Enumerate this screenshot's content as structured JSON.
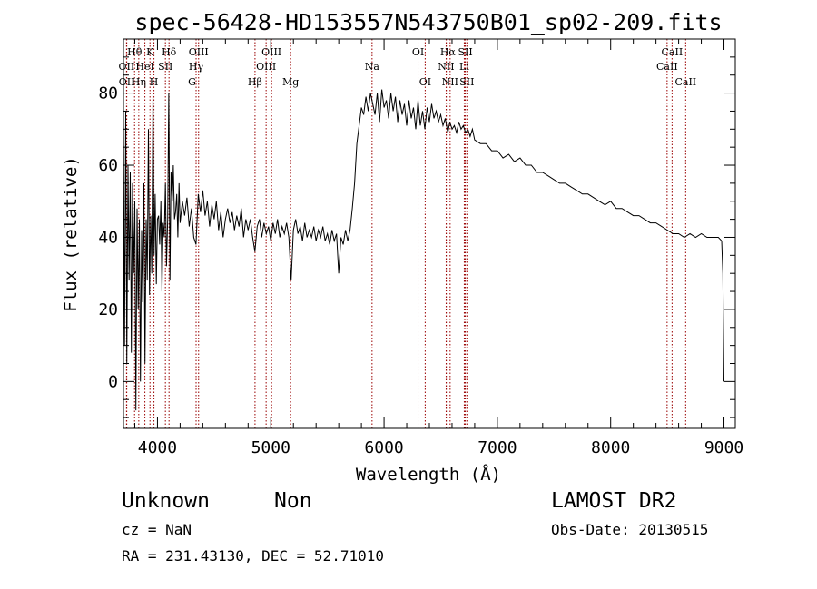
{
  "header": {
    "title": "spec-56428-HD153557N543750B01_sp02-209.fits"
  },
  "footer": {
    "class_label": "Unknown",
    "subclass_label": "Non",
    "survey_label": "LAMOST DR2",
    "cz_text": "cz = NaN",
    "obs_date_text": "Obs-Date: 20130515",
    "coords_text": "RA = 231.43130, DEC =  52.71010"
  },
  "chart_data": {
    "type": "line",
    "title": "spec-56428-HD153557N543750B01_sp02-209.fits",
    "xlabel": "Wavelength (Å)",
    "ylabel": "Flux (relative)",
    "xlim": [
      3700,
      9100
    ],
    "ylim": [
      -13,
      95
    ],
    "xticks": [
      4000,
      5000,
      6000,
      7000,
      8000,
      9000
    ],
    "yticks": [
      0,
      20,
      40,
      60,
      80
    ],
    "grid": false,
    "series": [
      {
        "points": [
          [
            3700,
            72
          ],
          [
            3710,
            10
          ],
          [
            3720,
            75
          ],
          [
            3730,
            5
          ],
          [
            3740,
            60
          ],
          [
            3750,
            28
          ],
          [
            3760,
            58
          ],
          [
            3770,
            8
          ],
          [
            3780,
            55
          ],
          [
            3790,
            30
          ],
          [
            3800,
            50
          ],
          [
            3810,
            -8
          ],
          [
            3820,
            48
          ],
          [
            3830,
            20
          ],
          [
            3840,
            45
          ],
          [
            3850,
            0
          ],
          [
            3860,
            42
          ],
          [
            3870,
            22
          ],
          [
            3880,
            55
          ],
          [
            3890,
            5
          ],
          [
            3900,
            45
          ],
          [
            3910,
            28
          ],
          [
            3920,
            70
          ],
          [
            3930,
            24
          ],
          [
            3940,
            46
          ],
          [
            3950,
            30
          ],
          [
            3960,
            80
          ],
          [
            3970,
            35
          ],
          [
            3980,
            52
          ],
          [
            3990,
            27
          ],
          [
            4000,
            45
          ],
          [
            4010,
            46
          ],
          [
            4020,
            38
          ],
          [
            4030,
            50
          ],
          [
            4040,
            25
          ],
          [
            4050,
            44
          ],
          [
            4060,
            40
          ],
          [
            4070,
            55
          ],
          [
            4080,
            32
          ],
          [
            4090,
            45
          ],
          [
            4100,
            80
          ],
          [
            4110,
            28
          ],
          [
            4120,
            58
          ],
          [
            4130,
            50
          ],
          [
            4140,
            60
          ],
          [
            4150,
            45
          ],
          [
            4160,
            47
          ],
          [
            4170,
            52
          ],
          [
            4180,
            40
          ],
          [
            4190,
            55
          ],
          [
            4200,
            44
          ],
          [
            4220,
            50
          ],
          [
            4240,
            46
          ],
          [
            4260,
            51
          ],
          [
            4280,
            43
          ],
          [
            4300,
            48
          ],
          [
            4320,
            40
          ],
          [
            4340,
            38
          ],
          [
            4360,
            52
          ],
          [
            4380,
            47
          ],
          [
            4400,
            53
          ],
          [
            4420,
            46
          ],
          [
            4440,
            50
          ],
          [
            4460,
            43
          ],
          [
            4480,
            49
          ],
          [
            4500,
            45
          ],
          [
            4520,
            50
          ],
          [
            4540,
            42
          ],
          [
            4560,
            47
          ],
          [
            4580,
            40
          ],
          [
            4600,
            45
          ],
          [
            4620,
            48
          ],
          [
            4640,
            44
          ],
          [
            4660,
            47
          ],
          [
            4680,
            42
          ],
          [
            4700,
            46
          ],
          [
            4720,
            43
          ],
          [
            4740,
            48
          ],
          [
            4760,
            40
          ],
          [
            4780,
            45
          ],
          [
            4800,
            42
          ],
          [
            4820,
            45
          ],
          [
            4840,
            40
          ],
          [
            4860,
            36
          ],
          [
            4880,
            43
          ],
          [
            4900,
            45
          ],
          [
            4920,
            40
          ],
          [
            4940,
            44
          ],
          [
            4960,
            41
          ],
          [
            4980,
            43
          ],
          [
            5000,
            39
          ],
          [
            5020,
            44
          ],
          [
            5040,
            41
          ],
          [
            5060,
            45
          ],
          [
            5080,
            40
          ],
          [
            5100,
            43
          ],
          [
            5120,
            41
          ],
          [
            5140,
            44
          ],
          [
            5160,
            40
          ],
          [
            5180,
            28
          ],
          [
            5200,
            42
          ],
          [
            5220,
            45
          ],
          [
            5240,
            41
          ],
          [
            5260,
            43
          ],
          [
            5280,
            39
          ],
          [
            5300,
            44
          ],
          [
            5320,
            40
          ],
          [
            5340,
            42
          ],
          [
            5360,
            40
          ],
          [
            5380,
            43
          ],
          [
            5400,
            39
          ],
          [
            5420,
            42
          ],
          [
            5440,
            40
          ],
          [
            5460,
            43
          ],
          [
            5480,
            39
          ],
          [
            5500,
            41
          ],
          [
            5520,
            38
          ],
          [
            5540,
            42
          ],
          [
            5560,
            39
          ],
          [
            5580,
            41
          ],
          [
            5600,
            30
          ],
          [
            5620,
            40
          ],
          [
            5640,
            38
          ],
          [
            5660,
            42
          ],
          [
            5680,
            39
          ],
          [
            5700,
            42
          ],
          [
            5720,
            48
          ],
          [
            5740,
            55
          ],
          [
            5760,
            66
          ],
          [
            5780,
            71
          ],
          [
            5800,
            76
          ],
          [
            5820,
            74
          ],
          [
            5840,
            79
          ],
          [
            5860,
            75
          ],
          [
            5880,
            80
          ],
          [
            5900,
            77
          ],
          [
            5920,
            74
          ],
          [
            5940,
            80
          ],
          [
            5960,
            72
          ],
          [
            5980,
            81
          ],
          [
            6000,
            76
          ],
          [
            6020,
            78
          ],
          [
            6040,
            73
          ],
          [
            6060,
            80
          ],
          [
            6080,
            75
          ],
          [
            6100,
            79
          ],
          [
            6120,
            72
          ],
          [
            6140,
            78
          ],
          [
            6160,
            74
          ],
          [
            6180,
            77
          ],
          [
            6200,
            71
          ],
          [
            6220,
            78
          ],
          [
            6240,
            73
          ],
          [
            6260,
            76
          ],
          [
            6280,
            70
          ],
          [
            6300,
            78
          ],
          [
            6320,
            71
          ],
          [
            6340,
            75
          ],
          [
            6360,
            70
          ],
          [
            6380,
            76
          ],
          [
            6400,
            72
          ],
          [
            6420,
            77
          ],
          [
            6440,
            73
          ],
          [
            6460,
            75
          ],
          [
            6480,
            72
          ],
          [
            6500,
            74
          ],
          [
            6520,
            71
          ],
          [
            6540,
            73
          ],
          [
            6563,
            69
          ],
          [
            6580,
            72
          ],
          [
            6600,
            70
          ],
          [
            6620,
            71
          ],
          [
            6640,
            69
          ],
          [
            6660,
            72
          ],
          [
            6680,
            70
          ],
          [
            6700,
            71
          ],
          [
            6720,
            69
          ],
          [
            6740,
            70
          ],
          [
            6760,
            68
          ],
          [
            6780,
            70
          ],
          [
            6800,
            67
          ],
          [
            6850,
            66
          ],
          [
            6900,
            66
          ],
          [
            6950,
            64
          ],
          [
            7000,
            64
          ],
          [
            7050,
            62
          ],
          [
            7100,
            63
          ],
          [
            7150,
            61
          ],
          [
            7200,
            62
          ],
          [
            7250,
            60
          ],
          [
            7300,
            60
          ],
          [
            7350,
            58
          ],
          [
            7400,
            58
          ],
          [
            7450,
            57
          ],
          [
            7500,
            56
          ],
          [
            7550,
            55
          ],
          [
            7600,
            55
          ],
          [
            7650,
            54
          ],
          [
            7700,
            53
          ],
          [
            7750,
            52
          ],
          [
            7800,
            52
          ],
          [
            7850,
            51
          ],
          [
            7900,
            50
          ],
          [
            7950,
            49
          ],
          [
            8000,
            50
          ],
          [
            8050,
            48
          ],
          [
            8100,
            48
          ],
          [
            8150,
            47
          ],
          [
            8200,
            46
          ],
          [
            8250,
            46
          ],
          [
            8300,
            45
          ],
          [
            8350,
            44
          ],
          [
            8400,
            44
          ],
          [
            8450,
            43
          ],
          [
            8500,
            42
          ],
          [
            8550,
            41
          ],
          [
            8600,
            41
          ],
          [
            8650,
            40
          ],
          [
            8700,
            41
          ],
          [
            8750,
            40
          ],
          [
            8800,
            41
          ],
          [
            8850,
            40
          ],
          [
            8900,
            40
          ],
          [
            8950,
            40
          ],
          [
            8980,
            39
          ],
          [
            8990,
            30
          ],
          [
            9000,
            0
          ]
        ]
      }
    ],
    "lines": [
      {
        "label": "Hθ",
        "x": 3798,
        "row": 1
      },
      {
        "label": "OII",
        "x": 3727,
        "row": 2
      },
      {
        "label": "OII",
        "x": 3729,
        "row": 3
      },
      {
        "label": "HeI",
        "x": 3889,
        "row": 2
      },
      {
        "label": "Hη",
        "x": 3835,
        "row": 3
      },
      {
        "label": "K",
        "x": 3934,
        "row": 1
      },
      {
        "label": "H",
        "x": 3969,
        "row": 3
      },
      {
        "label": "Hδ",
        "x": 4102,
        "row": 1
      },
      {
        "label": "SII",
        "x": 4070,
        "row": 2
      },
      {
        "label": "OIII",
        "x": 4363,
        "row": 1
      },
      {
        "label": "Hγ",
        "x": 4341,
        "row": 2
      },
      {
        "label": "G",
        "x": 4305,
        "row": 3
      },
      {
        "label": "Hβ",
        "x": 4861,
        "row": 3
      },
      {
        "label": "OIII",
        "x": 5007,
        "row": 1
      },
      {
        "label": "OIII",
        "x": 4959,
        "row": 2
      },
      {
        "label": "Mg",
        "x": 5175,
        "row": 3
      },
      {
        "label": "Na",
        "x": 5894,
        "row": 2
      },
      {
        "label": "OI",
        "x": 6300,
        "row": 1
      },
      {
        "label": "OI",
        "x": 6363,
        "row": 3
      },
      {
        "label": "Hα",
        "x": 6563,
        "row": 1
      },
      {
        "label": "NII",
        "x": 6548,
        "row": 2
      },
      {
        "label": "NII",
        "x": 6583,
        "row": 3
      },
      {
        "label": "SII",
        "x": 6717,
        "row": 1
      },
      {
        "label": "Li",
        "x": 6708,
        "row": 2
      },
      {
        "label": "SII",
        "x": 6731,
        "row": 3
      },
      {
        "label": "CaII",
        "x": 8542,
        "row": 1
      },
      {
        "label": "CaII",
        "x": 8498,
        "row": 2
      },
      {
        "label": "CaII",
        "x": 8662,
        "row": 3
      }
    ]
  }
}
